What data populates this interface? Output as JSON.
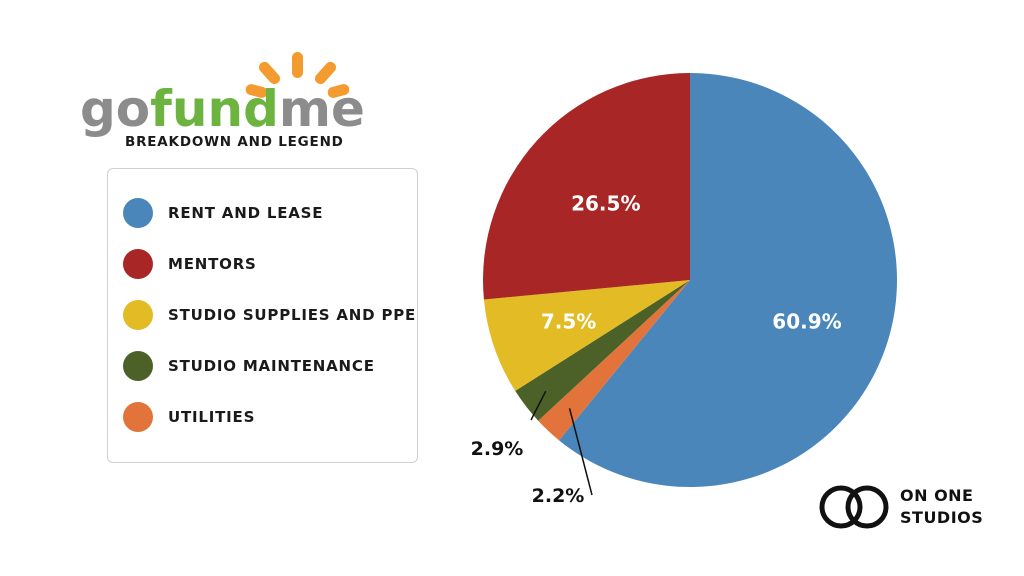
{
  "header": {
    "logo_go": "go",
    "logo_fund": "fund",
    "logo_me": "me",
    "subtitle": "BREAKDOWN AND LEGEND"
  },
  "legend": {
    "items": [
      {
        "label": "RENT AND LEASE",
        "color": "#4a86ba"
      },
      {
        "label": "MENTORS",
        "color": "#a82625"
      },
      {
        "label": "STUDIO SUPPLIES AND PPE",
        "color": "#e3bb24"
      },
      {
        "label": "STUDIO MAINTENANCE",
        "color": "#4c6128"
      },
      {
        "label": "UTILITIES",
        "color": "#e2733a"
      }
    ]
  },
  "chart_data": {
    "type": "pie",
    "title": "",
    "start": "12 o'clock",
    "direction": "clockwise",
    "slices": [
      {
        "label": "RENT AND LEASE",
        "value": 60.9,
        "display": "60.9%",
        "color": "#4a86ba",
        "label_position": "inside"
      },
      {
        "label": "UTILITIES",
        "value": 2.2,
        "display": "2.2%",
        "color": "#e2733a",
        "label_position": "outside"
      },
      {
        "label": "STUDIO MAINTENANCE",
        "value": 2.9,
        "display": "2.9%",
        "color": "#4c6128",
        "label_position": "outside"
      },
      {
        "label": "STUDIO SUPPLIES AND PPE",
        "value": 7.5,
        "display": "7.5%",
        "color": "#e3bb24",
        "label_position": "inside"
      },
      {
        "label": "MENTORS",
        "value": 26.5,
        "display": "26.5%",
        "color": "#a82625",
        "label_position": "inside"
      }
    ]
  },
  "branding": {
    "line1": "ON ONE",
    "line2": "STUDIOS"
  }
}
